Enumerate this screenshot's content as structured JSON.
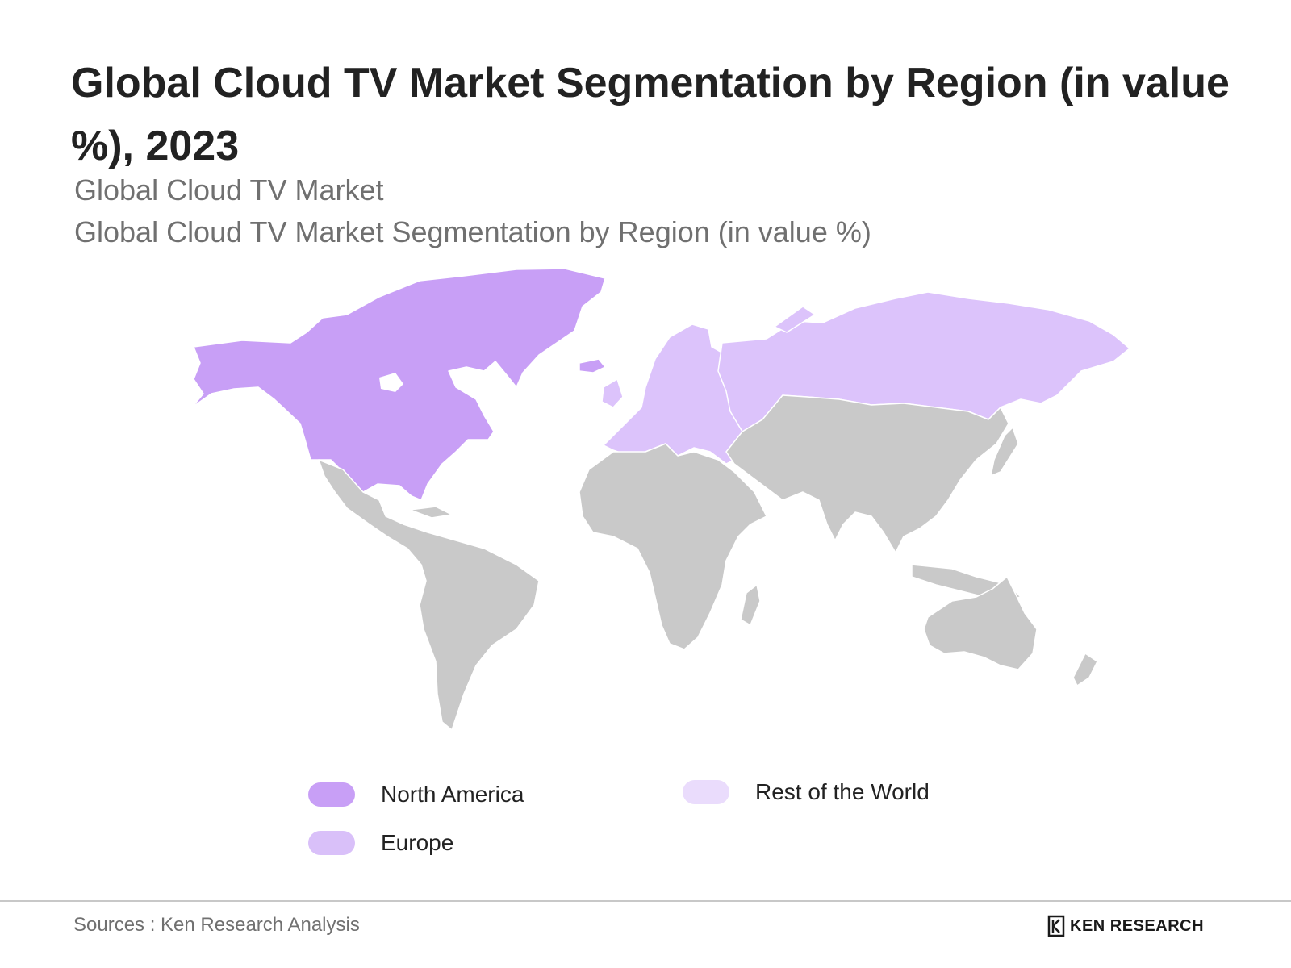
{
  "title": "Global Cloud TV Market Segmentation by Region (in value %), 2023",
  "subtitle_1": "Global Cloud TV Market",
  "subtitle_2": "Global Cloud TV Market Segmentation by Region (in value %)",
  "map": {
    "regions": [
      {
        "name": "North America",
        "color": "#c89ff6"
      },
      {
        "name": "Europe",
        "color": "#dcc3fb"
      },
      {
        "name": "Rest of the World",
        "color": "#c9c9c9"
      }
    ]
  },
  "legend": [
    {
      "label": "North America",
      "color": "#c89ff6"
    },
    {
      "label": "Europe",
      "color": "#d9c0f9"
    },
    {
      "label": "Rest of the World",
      "color": "#eadcfc"
    }
  ],
  "footer": {
    "source": "Sources : Ken Research Analysis",
    "brand": "KEN RESEARCH",
    "brand_icon": "ken-research-logo"
  }
}
